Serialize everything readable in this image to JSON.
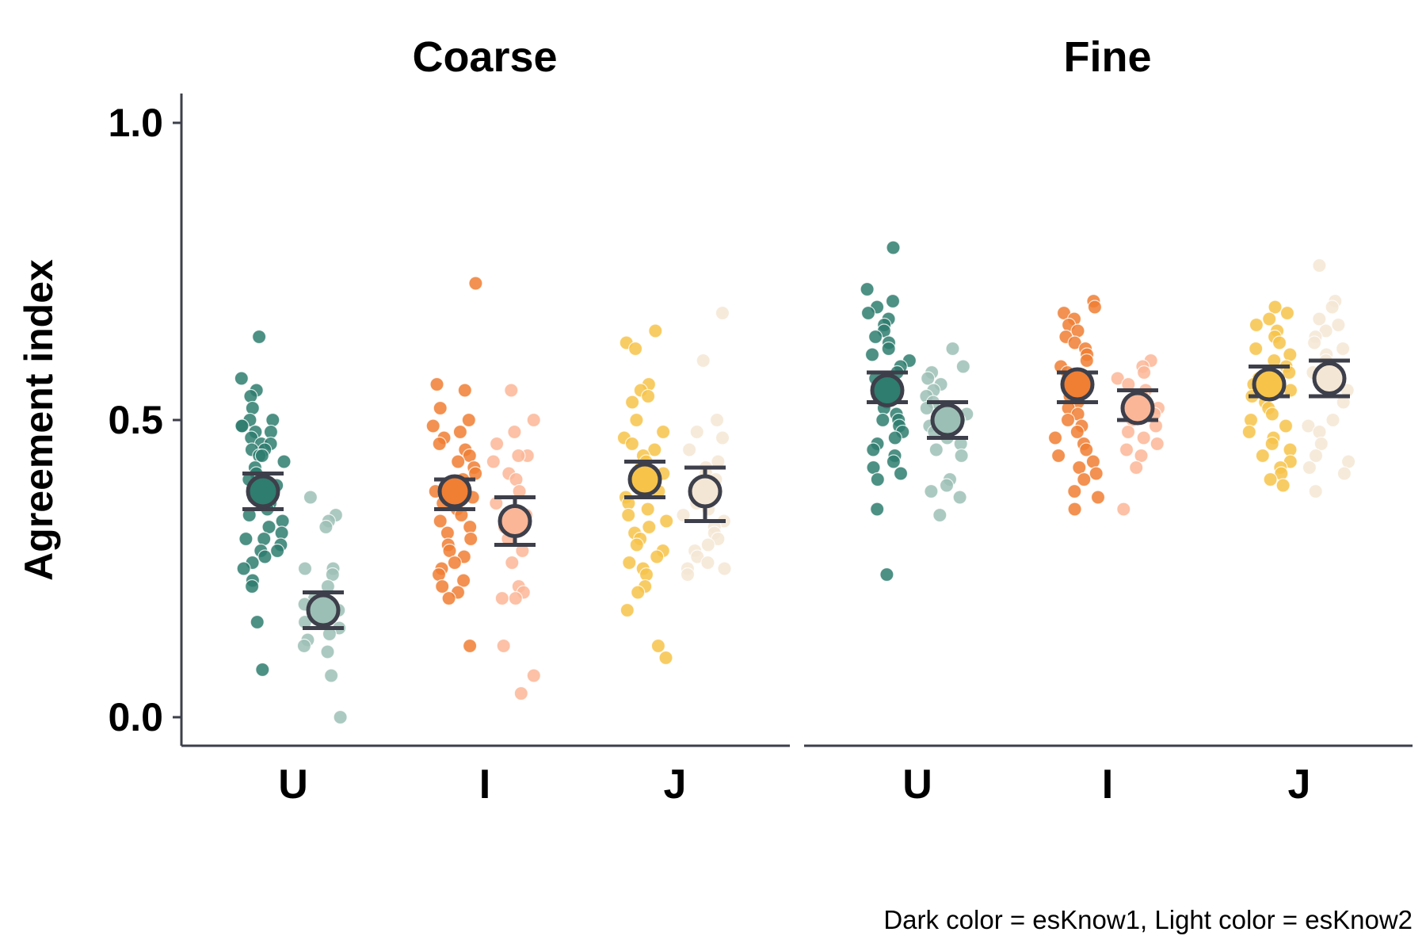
{
  "chart_data": {
    "type": "scatter",
    "subtype": "jittered strip plot with mean and error bars",
    "ylabel": "Agreement index",
    "ylim": [
      -0.05,
      1.05
    ],
    "yticks": [
      0.0,
      0.5,
      1.0
    ],
    "ytick_labels": [
      "0.0",
      "0.5",
      "1.0"
    ],
    "categories": [
      "U",
      "I",
      "J"
    ],
    "caption": "Dark color = esKnow1, Light color = esKnow2",
    "grid": false,
    "colors": {
      "U": {
        "dark": "#2e7d6e",
        "light": "#9cbfb5"
      },
      "I": {
        "dark": "#f07e33",
        "light": "#fbb697"
      },
      "J": {
        "dark": "#f7c349",
        "light": "#f4e6d4"
      },
      "axis": "#3d3f4a"
    },
    "panels": [
      {
        "title": "Coarse",
        "groups": [
          {
            "category": "U",
            "esKnow1": {
              "mean": 0.38,
              "lower": 0.35,
              "upper": 0.41,
              "points": [
                0.64,
                0.57,
                0.55,
                0.54,
                0.52,
                0.5,
                0.5,
                0.49,
                0.49,
                0.48,
                0.48,
                0.47,
                0.46,
                0.46,
                0.45,
                0.45,
                0.44,
                0.44,
                0.43,
                0.42,
                0.41,
                0.4,
                0.39,
                0.38,
                0.37,
                0.37,
                0.36,
                0.35,
                0.34,
                0.33,
                0.32,
                0.31,
                0.3,
                0.3,
                0.29,
                0.28,
                0.28,
                0.27,
                0.26,
                0.25,
                0.23,
                0.22,
                0.16,
                0.08
              ]
            },
            "esKnow2": {
              "mean": 0.18,
              "lower": 0.15,
              "upper": 0.21,
              "points": [
                0.37,
                0.34,
                0.33,
                0.32,
                0.25,
                0.25,
                0.24,
                0.22,
                0.2,
                0.19,
                0.18,
                0.17,
                0.16,
                0.15,
                0.14,
                0.13,
                0.12,
                0.11,
                0.07,
                0.0
              ]
            }
          },
          {
            "category": "I",
            "esKnow1": {
              "mean": 0.38,
              "lower": 0.35,
              "upper": 0.4,
              "points": [
                0.73,
                0.56,
                0.55,
                0.52,
                0.5,
                0.49,
                0.48,
                0.47,
                0.46,
                0.45,
                0.44,
                0.43,
                0.42,
                0.41,
                0.4,
                0.39,
                0.38,
                0.37,
                0.36,
                0.35,
                0.34,
                0.33,
                0.32,
                0.31,
                0.3,
                0.29,
                0.28,
                0.27,
                0.26,
                0.25,
                0.24,
                0.23,
                0.22,
                0.21,
                0.2,
                0.12
              ]
            },
            "esKnow2": {
              "mean": 0.33,
              "lower": 0.29,
              "upper": 0.37,
              "points": [
                0.55,
                0.5,
                0.48,
                0.46,
                0.44,
                0.44,
                0.43,
                0.41,
                0.4,
                0.38,
                0.36,
                0.34,
                0.32,
                0.3,
                0.28,
                0.26,
                0.22,
                0.21,
                0.2,
                0.2,
                0.12,
                0.07,
                0.04
              ]
            }
          },
          {
            "category": "J",
            "esKnow1": {
              "mean": 0.4,
              "lower": 0.37,
              "upper": 0.43,
              "points": [
                0.65,
                0.63,
                0.62,
                0.56,
                0.55,
                0.54,
                0.53,
                0.5,
                0.48,
                0.47,
                0.46,
                0.45,
                0.44,
                0.43,
                0.42,
                0.41,
                0.4,
                0.39,
                0.38,
                0.37,
                0.36,
                0.35,
                0.34,
                0.33,
                0.32,
                0.31,
                0.3,
                0.29,
                0.28,
                0.27,
                0.26,
                0.25,
                0.24,
                0.22,
                0.21,
                0.18,
                0.12,
                0.1
              ]
            },
            "esKnow2": {
              "mean": 0.38,
              "lower": 0.33,
              "upper": 0.42,
              "points": [
                0.68,
                0.6,
                0.5,
                0.48,
                0.47,
                0.45,
                0.43,
                0.42,
                0.41,
                0.4,
                0.38,
                0.36,
                0.35,
                0.34,
                0.33,
                0.32,
                0.31,
                0.3,
                0.29,
                0.28,
                0.27,
                0.26,
                0.25,
                0.25,
                0.24
              ]
            }
          }
        ]
      },
      {
        "title": "Fine",
        "groups": [
          {
            "category": "U",
            "esKnow1": {
              "mean": 0.55,
              "lower": 0.53,
              "upper": 0.58,
              "points": [
                0.79,
                0.72,
                0.7,
                0.69,
                0.68,
                0.67,
                0.66,
                0.65,
                0.64,
                0.63,
                0.62,
                0.61,
                0.6,
                0.59,
                0.58,
                0.57,
                0.56,
                0.55,
                0.54,
                0.53,
                0.52,
                0.51,
                0.5,
                0.5,
                0.49,
                0.48,
                0.47,
                0.46,
                0.45,
                0.44,
                0.43,
                0.42,
                0.41,
                0.4,
                0.35,
                0.24
              ]
            },
            "esKnow2": {
              "mean": 0.5,
              "lower": 0.47,
              "upper": 0.53,
              "points": [
                0.62,
                0.59,
                0.58,
                0.57,
                0.56,
                0.55,
                0.54,
                0.53,
                0.52,
                0.51,
                0.5,
                0.49,
                0.48,
                0.47,
                0.46,
                0.45,
                0.44,
                0.4,
                0.39,
                0.38,
                0.37,
                0.34
              ]
            }
          },
          {
            "category": "I",
            "esKnow1": {
              "mean": 0.56,
              "lower": 0.53,
              "upper": 0.58,
              "points": [
                0.7,
                0.69,
                0.68,
                0.67,
                0.66,
                0.65,
                0.64,
                0.63,
                0.62,
                0.61,
                0.6,
                0.59,
                0.58,
                0.57,
                0.56,
                0.55,
                0.54,
                0.53,
                0.52,
                0.51,
                0.5,
                0.49,
                0.48,
                0.47,
                0.46,
                0.45,
                0.44,
                0.43,
                0.42,
                0.41,
                0.4,
                0.38,
                0.37,
                0.35
              ]
            },
            "esKnow2": {
              "mean": 0.52,
              "lower": 0.5,
              "upper": 0.55,
              "points": [
                0.6,
                0.59,
                0.58,
                0.57,
                0.56,
                0.55,
                0.54,
                0.53,
                0.52,
                0.51,
                0.5,
                0.49,
                0.48,
                0.47,
                0.46,
                0.45,
                0.44,
                0.42,
                0.35
              ]
            }
          },
          {
            "category": "J",
            "esKnow1": {
              "mean": 0.56,
              "lower": 0.54,
              "upper": 0.59,
              "points": [
                0.69,
                0.68,
                0.67,
                0.66,
                0.65,
                0.64,
                0.63,
                0.62,
                0.61,
                0.6,
                0.59,
                0.58,
                0.57,
                0.56,
                0.55,
                0.54,
                0.53,
                0.52,
                0.51,
                0.5,
                0.49,
                0.48,
                0.47,
                0.46,
                0.45,
                0.44,
                0.43,
                0.42,
                0.41,
                0.4,
                0.39
              ]
            },
            "esKnow2": {
              "mean": 0.57,
              "lower": 0.54,
              "upper": 0.6,
              "points": [
                0.76,
                0.7,
                0.69,
                0.67,
                0.66,
                0.65,
                0.64,
                0.63,
                0.62,
                0.61,
                0.6,
                0.58,
                0.56,
                0.55,
                0.53,
                0.5,
                0.49,
                0.48,
                0.46,
                0.44,
                0.43,
                0.42,
                0.41,
                0.38
              ]
            }
          }
        ]
      }
    ]
  }
}
